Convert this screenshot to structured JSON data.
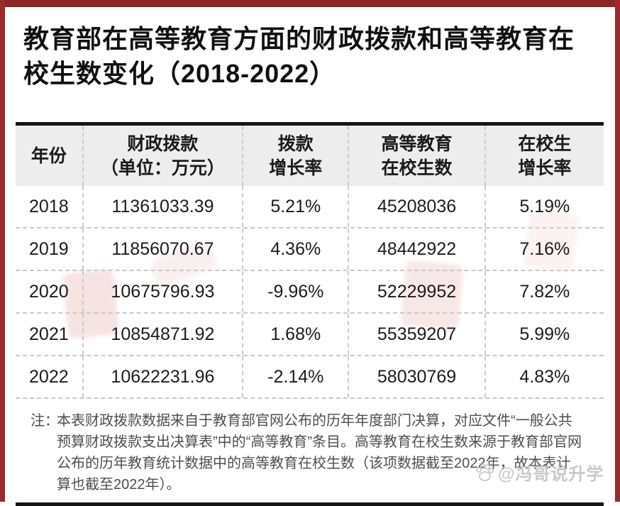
{
  "title": "教育部在高等教育方面的财政拨款和高等教育在校生数变化（2018-2022）",
  "table": {
    "columns": [
      "年份",
      "财政拨款（单位：万元）",
      "拨款增长率",
      "高等教育在校生数",
      "在校生增长率"
    ],
    "header_lines": [
      [
        "年份"
      ],
      [
        "财政拨款",
        "（单位：万元）"
      ],
      [
        "拨款",
        "增长率"
      ],
      [
        "高等教育",
        "在校生数"
      ],
      [
        "在校生",
        "增长率"
      ]
    ],
    "rows": [
      [
        "2018",
        "11361033.39",
        "5.21%",
        "45208036",
        "5.19%"
      ],
      [
        "2019",
        "11856070.67",
        "4.36%",
        "48442922",
        "7.16%"
      ],
      [
        "2020",
        "10675796.93",
        "-9.96%",
        "52229952",
        "7.82%"
      ],
      [
        "2021",
        "10854871.92",
        "1.68%",
        "55359207",
        "5.99%"
      ],
      [
        "2022",
        "10622231.96",
        "-2.14%",
        "58030769",
        "4.83%"
      ]
    ]
  },
  "note": {
    "label": "注：",
    "lines": [
      "本表财政拨款数据来自于教育部官网公布的历年年度部门决算，对应文件“一般公共",
      "预算财政拨款支出决算表”中的“高等教育”条目。高等教育在校生数来源于教育部官网",
      "公布的历年教育统计数据中的高等教育在校生数（该项数据截至2022年，故本表计",
      "算也截至2022年）。"
    ]
  },
  "watermark": {
    "icon": "paw-icon",
    "handle": "@冯哥说升学"
  },
  "colors": {
    "frame_red": "#9b2b2b",
    "header_bg": "#ededed",
    "line_black": "#151515",
    "text_black": "#1c1c1c",
    "note_gray": "#4e4e4e",
    "dash_gray": "#cbcbcb",
    "watermark_gray": "#c9c9c9",
    "stamp_red": "#c03028"
  },
  "chart_data": {
    "type": "table",
    "title": "教育部在高等教育方面的财政拨款和高等教育在校生数变化（2018-2022）",
    "columns": [
      "年份",
      "财政拨款（单位：万元）",
      "拨款增长率",
      "高等教育在校生数",
      "在校生增长率"
    ],
    "rows": [
      [
        2018,
        11361033.39,
        "5.21%",
        45208036,
        "5.19%"
      ],
      [
        2019,
        11856070.67,
        "4.36%",
        48442922,
        "7.16%"
      ],
      [
        2020,
        10675796.93,
        "-9.96%",
        52229952,
        "7.82%"
      ],
      [
        2021,
        10854871.92,
        "1.68%",
        55359207,
        "5.99%"
      ],
      [
        2022,
        10622231.96,
        "-2.14%",
        58030769,
        "4.83%"
      ]
    ],
    "note": "注：本表财政拨款数据来自于教育部官网公布的历年年度部门决算，对应文件“一般公共预算财政拨款支出决算表”中的“高等教育”条目。高等教育在校生数来源于教育部官网公布的历年教育统计数据中的高等教育在校生数（该项数据截至2022年，故本表计算也截至2022年）。"
  }
}
